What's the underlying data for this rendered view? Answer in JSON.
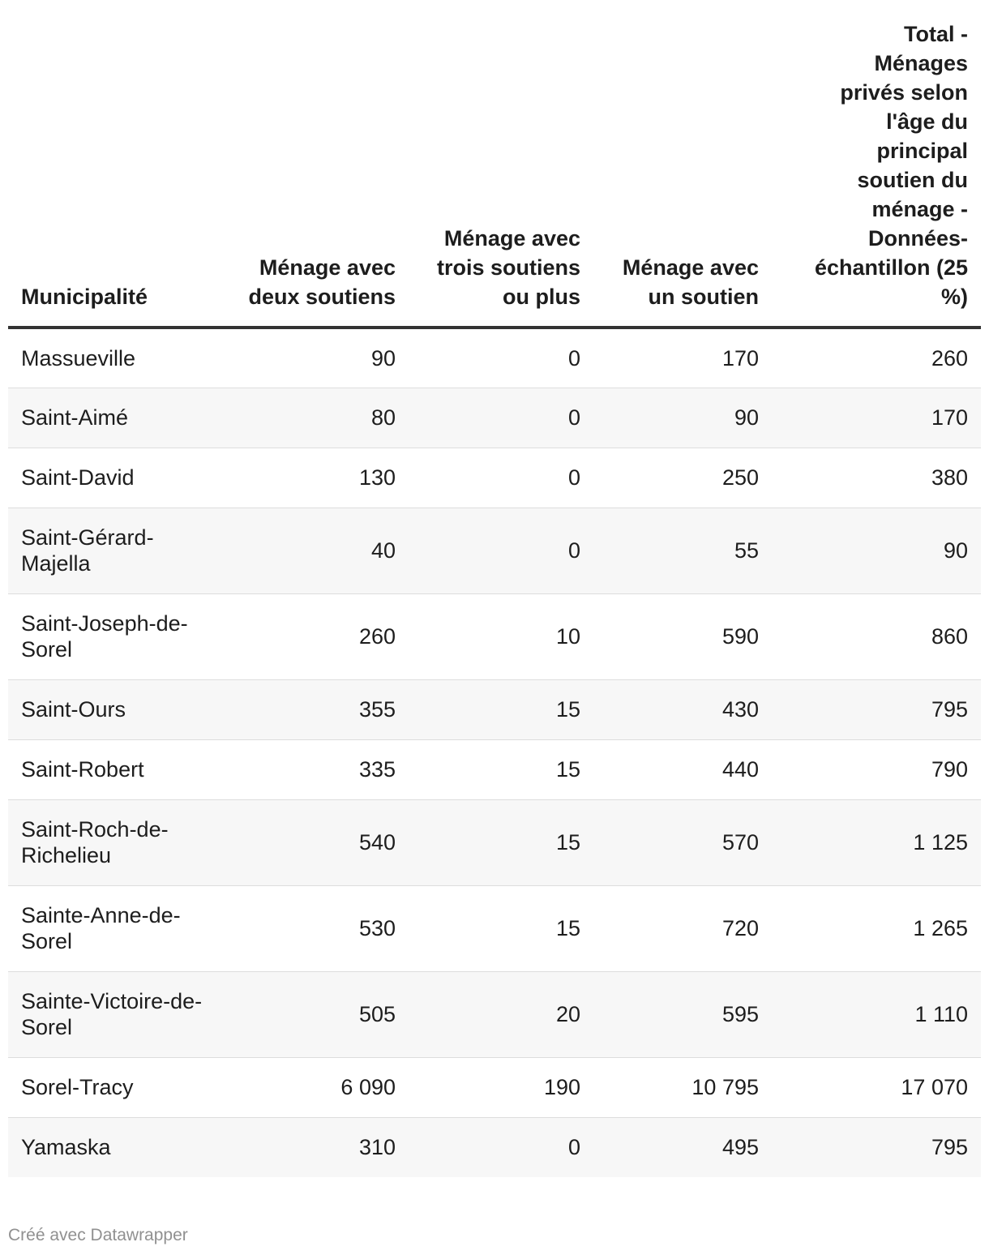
{
  "table": {
    "headers": [
      "Municipalité",
      "Ménage avec deux soutiens",
      "Ménage avec trois soutiens ou plus",
      "Ménage avec un soutien",
      "Total - Ménages privés selon l'âge du principal soutien du ménage - Données-échantillon (25 %)"
    ],
    "rows": [
      {
        "name": "Massueville",
        "deux": "90",
        "trois": "0",
        "un": "170",
        "total": "260"
      },
      {
        "name": "Saint-Aimé",
        "deux": "80",
        "trois": "0",
        "un": "90",
        "total": "170"
      },
      {
        "name": "Saint-David",
        "deux": "130",
        "trois": "0",
        "un": "250",
        "total": "380"
      },
      {
        "name": "Saint-Gérard-Majella",
        "deux": "40",
        "trois": "0",
        "un": "55",
        "total": "90"
      },
      {
        "name": "Saint-Joseph-de-Sorel",
        "deux": "260",
        "trois": "10",
        "un": "590",
        "total": "860"
      },
      {
        "name": "Saint-Ours",
        "deux": "355",
        "trois": "15",
        "un": "430",
        "total": "795"
      },
      {
        "name": "Saint-Robert",
        "deux": "335",
        "trois": "15",
        "un": "440",
        "total": "790"
      },
      {
        "name": "Saint-Roch-de-Richelieu",
        "deux": "540",
        "trois": "15",
        "un": "570",
        "total": "1 125"
      },
      {
        "name": "Sainte-Anne-de-Sorel",
        "deux": "530",
        "trois": "15",
        "un": "720",
        "total": "1 265"
      },
      {
        "name": "Sainte-Victoire-de-Sorel",
        "deux": "505",
        "trois": "20",
        "un": "595",
        "total": "1 110"
      },
      {
        "name": "Sorel-Tracy",
        "deux": "6 090",
        "trois": "190",
        "un": "10 795",
        "total": "17 070"
      },
      {
        "name": "Yamaska",
        "deux": "310",
        "trois": "0",
        "un": "495",
        "total": "795"
      }
    ]
  },
  "footer": {
    "credit": "Créé avec Datawrapper"
  }
}
